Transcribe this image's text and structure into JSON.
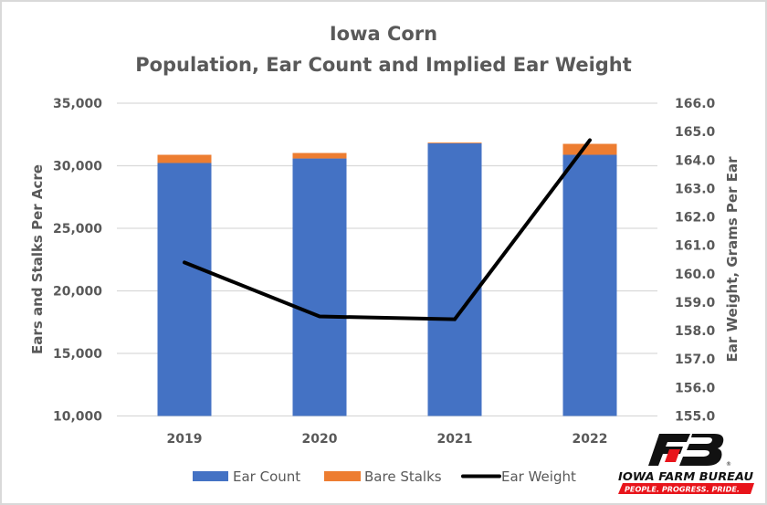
{
  "chart_data": {
    "type": "bar",
    "stacked": true,
    "title": "Iowa Corn",
    "subtitle": "Population, Ear Count and Implied Ear Weight",
    "categories": [
      "2019",
      "2020",
      "2021",
      "2022"
    ],
    "series": [
      {
        "name": "Ear Count",
        "type": "bar",
        "axis": "left",
        "color": "#4472C4",
        "values": [
          30220,
          30580,
          31790,
          30875
        ]
      },
      {
        "name": "Bare Stalks",
        "type": "bar",
        "axis": "left",
        "color": "#ED7D31",
        "values": [
          655,
          440,
          60,
          875
        ]
      },
      {
        "name": "Ear Weight",
        "type": "line",
        "axis": "right",
        "color": "#000000",
        "values": [
          160.4,
          158.5,
          158.4,
          164.7
        ]
      }
    ],
    "ylabel": "Ears and Stalks Per Acre",
    "ylim": [
      10000,
      35000
    ],
    "yticks": [
      "10,000",
      "15,000",
      "20,000",
      "25,000",
      "30,000",
      "35,000"
    ],
    "ytick_values": [
      10000,
      15000,
      20000,
      25000,
      30000,
      35000
    ],
    "y2label": "Ear Weight, Grams Per Ear",
    "y2lim": [
      155.0,
      166.0
    ],
    "y2ticks": [
      "155.0",
      "156.0",
      "157.0",
      "158.0",
      "159.0",
      "160.0",
      "161.0",
      "162.0",
      "163.0",
      "164.0",
      "165.0",
      "166.0"
    ],
    "y2tick_values": [
      155,
      156,
      157,
      158,
      159,
      160,
      161,
      162,
      163,
      164,
      165,
      166
    ],
    "grid": true,
    "legend": "bottom"
  },
  "logo": {
    "name": "IOWA FARM BUREAU",
    "tagline": "PEOPLE. PROGRESS. PRIDE.",
    "registered": "®"
  }
}
